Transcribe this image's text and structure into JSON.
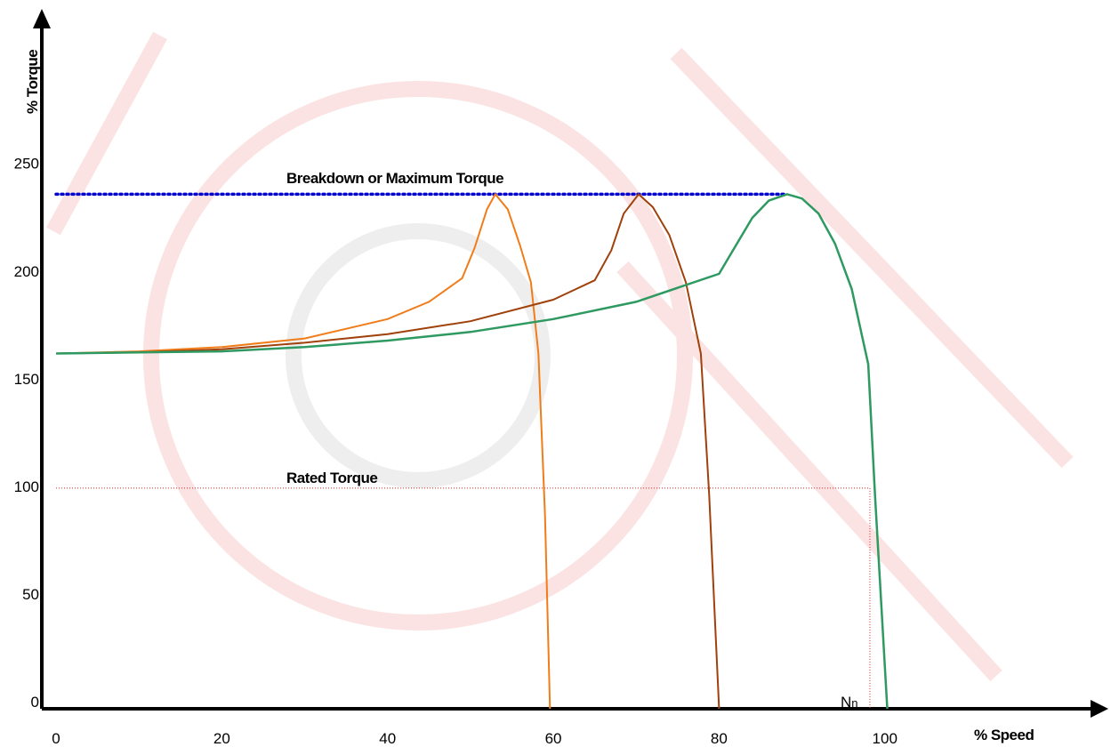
{
  "chart_data": {
    "type": "line",
    "xlabel": "% Speed",
    "ylabel": "% Torque",
    "xlim": [
      0,
      126
    ],
    "ylim": [
      0,
      323
    ],
    "xticks": [
      0,
      20,
      40,
      60,
      80,
      100
    ],
    "yticks": [
      0,
      50,
      100,
      150,
      200,
      250
    ],
    "series": [
      {
        "color": "#f07d1a",
        "x": [
          0,
          10,
          20,
          30,
          40,
          45,
          49,
          50.5,
          52,
          53,
          54.5,
          56,
          57.3,
          58.2,
          59,
          59.6
        ],
        "values": [
          165,
          166,
          168,
          172,
          181,
          189,
          200,
          214,
          232,
          239,
          232,
          215,
          198,
          165,
          90,
          0
        ]
      },
      {
        "color": "#a0400a",
        "x": [
          0,
          10,
          20,
          30,
          40,
          50,
          60,
          65,
          67,
          68.5,
          70.3,
          72,
          74,
          76,
          77.8,
          78.8,
          80
        ],
        "values": [
          165,
          165.5,
          167,
          170,
          174,
          180,
          190,
          199,
          213,
          230,
          239,
          233,
          220,
          198,
          165,
          100,
          0
        ]
      },
      {
        "color": "#2e9960",
        "x": [
          0,
          10,
          20,
          30,
          40,
          50,
          60,
          70,
          80,
          82,
          84,
          86,
          88.2,
          90,
          92,
          94,
          96,
          98,
          98.8,
          100.3
        ],
        "values": [
          165,
          165.5,
          166,
          168,
          171,
          175,
          181,
          189,
          202,
          215,
          228,
          236,
          239,
          237,
          230,
          216,
          195,
          160,
          100,
          0
        ]
      }
    ],
    "breakdown": {
      "text": "Breakdown or Maximum Torque",
      "value": 239,
      "x_end": 88.2,
      "color": "#0000cc"
    },
    "rated": {
      "text": "Rated Torque",
      "value": 102.5,
      "x_end": 98.2,
      "color": "#e02020"
    },
    "speed_marker": {
      "label": "N",
      "subscript": "n"
    }
  }
}
